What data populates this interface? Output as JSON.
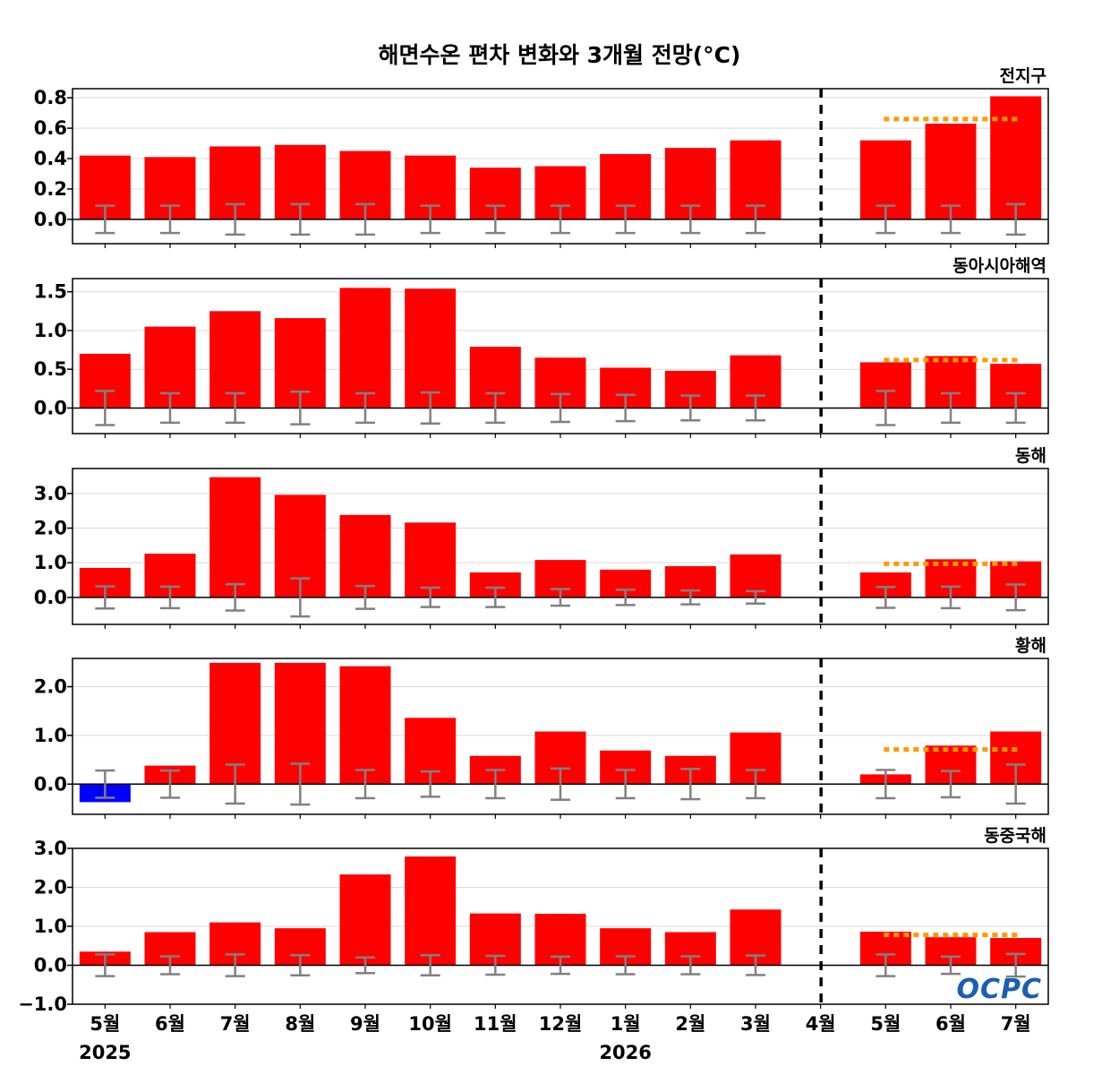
{
  "chart_data": {
    "type": "bar",
    "title": "해면수온 편차 변화와 3개월 전망(°C)",
    "categories": [
      "5월",
      "6월",
      "7월",
      "8월",
      "9월",
      "10월",
      "11월",
      "12월",
      "1월",
      "2월",
      "3월",
      "4월",
      "5월",
      "6월",
      "7월"
    ],
    "year_labels": [
      {
        "label": "2025",
        "index": 0
      },
      {
        "label": "2026",
        "index": 8
      }
    ],
    "divider_after_index": 11,
    "colors": {
      "positive": "#ff0000",
      "negative": "#0000ff",
      "error_bar": "#808080",
      "forecast_line": "#ff9900",
      "divider": "#000000",
      "logo": "#1a5fb4"
    },
    "grid": true,
    "panels": [
      {
        "title": "전지구",
        "ylim": [
          -0.16,
          0.86
        ],
        "yticks": [
          0.0,
          0.2,
          0.4,
          0.6,
          0.8
        ],
        "ytick_labels": [
          "0.0",
          "0.2",
          "0.4",
          "0.6",
          "0.8"
        ],
        "values": [
          0.42,
          0.41,
          0.48,
          0.49,
          0.45,
          0.42,
          0.34,
          0.35,
          0.43,
          0.47,
          0.52,
          null,
          0.52,
          0.63,
          0.81
        ],
        "error": [
          0.09,
          0.09,
          0.1,
          0.1,
          0.1,
          0.09,
          0.09,
          0.09,
          0.09,
          0.09,
          0.09,
          null,
          0.09,
          0.09,
          0.1
        ],
        "forecast_mean": 0.66
      },
      {
        "title": "동아시아해역",
        "ylim": [
          -0.33,
          1.67
        ],
        "yticks": [
          0.0,
          0.5,
          1.0,
          1.5
        ],
        "ytick_labels": [
          "0.0",
          "0.5",
          "1.0",
          "1.5"
        ],
        "values": [
          0.7,
          1.05,
          1.25,
          1.16,
          1.55,
          1.54,
          0.79,
          0.65,
          0.52,
          0.48,
          0.68,
          null,
          0.59,
          0.67,
          0.57
        ],
        "error": [
          0.22,
          0.19,
          0.19,
          0.21,
          0.19,
          0.2,
          0.19,
          0.18,
          0.17,
          0.16,
          0.16,
          null,
          0.22,
          0.19,
          0.19
        ],
        "forecast_mean": 0.62
      },
      {
        "title": "동해",
        "ylim": [
          -0.78,
          3.72
        ],
        "yticks": [
          0.0,
          1.0,
          2.0,
          3.0
        ],
        "ytick_labels": [
          "0.0",
          "1.0",
          "2.0",
          "3.0"
        ],
        "values": [
          0.85,
          1.26,
          3.47,
          2.96,
          2.38,
          2.16,
          0.72,
          1.08,
          0.8,
          0.9,
          1.24,
          null,
          0.72,
          1.1,
          1.04
        ],
        "error": [
          0.32,
          0.31,
          0.38,
          0.55,
          0.33,
          0.28,
          0.28,
          0.24,
          0.22,
          0.2,
          0.18,
          null,
          0.3,
          0.31,
          0.37
        ],
        "forecast_mean": 0.97
      },
      {
        "title": "황해",
        "ylim": [
          -0.62,
          2.58
        ],
        "yticks": [
          0.0,
          1.0,
          2.0
        ],
        "ytick_labels": [
          "0.0",
          "1.0",
          "2.0"
        ],
        "values": [
          -0.37,
          0.38,
          2.49,
          2.49,
          2.42,
          1.36,
          0.58,
          1.08,
          0.69,
          0.58,
          1.06,
          null,
          0.2,
          0.79,
          1.08
        ],
        "error": [
          0.28,
          0.28,
          0.4,
          0.42,
          0.29,
          0.26,
          0.29,
          0.32,
          0.29,
          0.31,
          0.29,
          null,
          0.29,
          0.27,
          0.4
        ],
        "forecast_mean": 0.71
      },
      {
        "title": "동중국해",
        "ylim": [
          -1.0,
          3.0
        ],
        "yticks": [
          -1.0,
          0.0,
          1.0,
          2.0,
          3.0
        ],
        "ytick_labels": [
          "−1.0",
          "0.0",
          "1.0",
          "2.0",
          "3.0"
        ],
        "values": [
          0.35,
          0.85,
          1.1,
          0.95,
          2.33,
          2.79,
          1.33,
          1.32,
          0.95,
          0.85,
          1.43,
          null,
          0.86,
          0.72,
          0.7
        ],
        "error": [
          0.28,
          0.23,
          0.28,
          0.26,
          0.2,
          0.26,
          0.24,
          0.22,
          0.23,
          0.23,
          0.25,
          null,
          0.28,
          0.22,
          0.29
        ],
        "forecast_mean": 0.78
      }
    ]
  },
  "logo": {
    "text": "OCPC"
  }
}
